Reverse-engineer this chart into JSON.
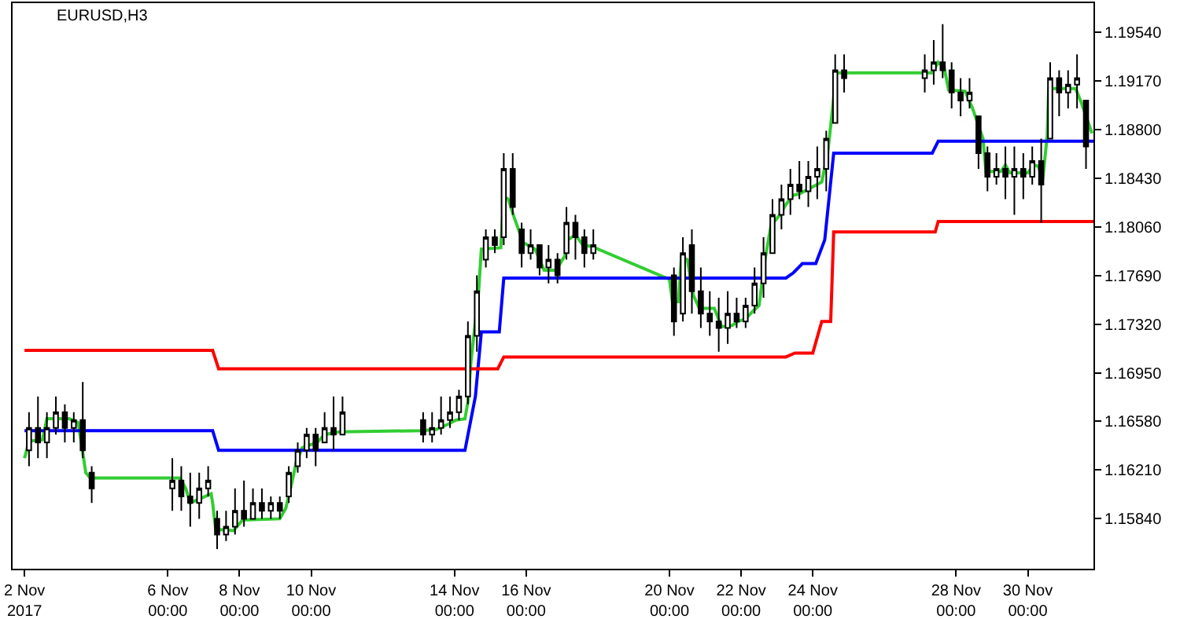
{
  "chart_data": {
    "type": "candlestick",
    "title": "EURUSD,H3",
    "color": "#000000",
    "x": [
      "2017-11-02T03:00",
      "2017-11-02T09:00",
      "2017-11-02T15:00",
      "2017-11-02T21:00",
      "2017-11-03T03:00",
      "2017-11-03T09:00",
      "2017-11-03T15:00",
      "2017-11-03T21:00",
      "2017-11-06T03:00",
      "2017-11-06T09:00",
      "2017-11-06T15:00",
      "2017-11-06T21:00",
      "2017-11-07T03:00",
      "2017-11-07T09:00",
      "2017-11-07T15:00",
      "2017-11-07T21:00",
      "2017-11-08T03:00",
      "2017-11-08T09:00",
      "2017-11-08T15:00",
      "2017-11-08T21:00",
      "2017-11-09T03:00",
      "2017-11-09T09:00",
      "2017-11-09T15:00",
      "2017-11-09T21:00",
      "2017-11-10T03:00",
      "2017-11-10T09:00",
      "2017-11-10T15:00",
      "2017-11-10T21:00",
      "2017-11-13T03:00",
      "2017-11-13T09:00",
      "2017-11-13T15:00",
      "2017-11-13T21:00",
      "2017-11-14T03:00",
      "2017-11-14T09:00",
      "2017-11-14T15:00",
      "2017-11-14T21:00",
      "2017-11-15T03:00",
      "2017-11-15T09:00",
      "2017-11-15T15:00",
      "2017-11-15T21:00",
      "2017-11-16T03:00",
      "2017-11-16T09:00",
      "2017-11-16T15:00",
      "2017-11-16T21:00",
      "2017-11-17T03:00",
      "2017-11-17T09:00",
      "2017-11-17T15:00",
      "2017-11-17T21:00",
      "2017-11-20T03:00",
      "2017-11-20T09:00",
      "2017-11-20T15:00",
      "2017-11-20T21:00",
      "2017-11-21T03:00",
      "2017-11-21T09:00",
      "2017-11-21T15:00",
      "2017-11-21T21:00",
      "2017-11-22T03:00",
      "2017-11-22T09:00",
      "2017-11-22T15:00",
      "2017-11-22T21:00",
      "2017-11-23T03:00",
      "2017-11-23T09:00",
      "2017-11-23T15:00",
      "2017-11-23T21:00",
      "2017-11-24T03:00",
      "2017-11-24T09:00",
      "2017-11-24T15:00",
      "2017-11-24T21:00",
      "2017-11-27T03:00",
      "2017-11-27T09:00",
      "2017-11-27T15:00",
      "2017-11-27T21:00",
      "2017-11-28T03:00",
      "2017-11-28T09:00",
      "2017-11-28T15:00",
      "2017-11-28T21:00",
      "2017-11-29T03:00",
      "2017-11-29T09:00",
      "2017-11-29T15:00",
      "2017-11-29T21:00",
      "2017-11-30T03:00",
      "2017-11-30T09:00",
      "2017-11-30T15:00",
      "2017-11-30T21:00",
      "2017-12-01T03:00",
      "2017-12-01T09:00",
      "2017-12-01T15:00"
    ],
    "ohlc": [
      [
        1.1636,
        1.1665,
        1.1624,
        1.1653
      ],
      [
        1.1653,
        1.1677,
        1.163,
        1.1642
      ],
      [
        1.1642,
        1.1665,
        1.163,
        1.1653
      ],
      [
        1.1653,
        1.1677,
        1.1648,
        1.1665
      ],
      [
        1.1665,
        1.1671,
        1.1642,
        1.1653
      ],
      [
        1.1653,
        1.1665,
        1.1642,
        1.1659
      ],
      [
        1.1659,
        1.1688,
        1.163,
        1.1636
      ],
      [
        1.1619,
        1.1624,
        1.1596,
        1.1607
      ],
      [
        1.1607,
        1.163,
        1.159,
        1.1613
      ],
      [
        1.1613,
        1.1624,
        1.159,
        1.1601
      ],
      [
        1.1601,
        1.1619,
        1.1578,
        1.1596
      ],
      [
        1.1596,
        1.1619,
        1.1584,
        1.1607
      ],
      [
        1.1607,
        1.1624,
        1.1601,
        1.1613
      ],
      [
        1.1584,
        1.159,
        1.1561,
        1.1572
      ],
      [
        1.1572,
        1.159,
        1.1567,
        1.1578
      ],
      [
        1.1578,
        1.1607,
        1.1572,
        1.159
      ],
      [
        1.159,
        1.1613,
        1.1578,
        1.1584
      ],
      [
        1.1584,
        1.1607,
        1.1584,
        1.1596
      ],
      [
        1.1596,
        1.1607,
        1.1584,
        1.159
      ],
      [
        1.159,
        1.1601,
        1.1584,
        1.1596
      ],
      [
        1.1596,
        1.1601,
        1.1584,
        1.159
      ],
      [
        1.1601,
        1.1624,
        1.1596,
        1.1619
      ],
      [
        1.1624,
        1.1642,
        1.1619,
        1.1636
      ],
      [
        1.1636,
        1.1653,
        1.163,
        1.1648
      ],
      [
        1.1648,
        1.1653,
        1.1624,
        1.1636
      ],
      [
        1.1642,
        1.1665,
        1.1642,
        1.1653
      ],
      [
        1.1653,
        1.1677,
        1.1636,
        1.1648
      ],
      [
        1.1648,
        1.1677,
        1.1648,
        1.1665
      ],
      [
        1.1659,
        1.1665,
        1.1642,
        1.1648
      ],
      [
        1.1648,
        1.1665,
        1.1642,
        1.1653
      ],
      [
        1.1653,
        1.1677,
        1.1648,
        1.1659
      ],
      [
        1.1659,
        1.1677,
        1.1653,
        1.1665
      ],
      [
        1.1665,
        1.1682,
        1.1659,
        1.1677
      ],
      [
        1.1677,
        1.1734,
        1.1671,
        1.1723
      ],
      [
        1.1723,
        1.1769,
        1.1711,
        1.1757
      ],
      [
        1.1781,
        1.1804,
        1.1775,
        1.1798
      ],
      [
        1.1798,
        1.1804,
        1.1786,
        1.1792
      ],
      [
        1.1798,
        1.1862,
        1.1792,
        1.185
      ],
      [
        1.185,
        1.1862,
        1.1815,
        1.1821
      ],
      [
        1.1804,
        1.1809,
        1.1775,
        1.1786
      ],
      [
        1.1786,
        1.1804,
        1.1781,
        1.1792
      ],
      [
        1.1792,
        1.1792,
        1.1769,
        1.1775
      ],
      [
        1.1775,
        1.1792,
        1.1763,
        1.1781
      ],
      [
        1.1781,
        1.1786,
        1.1763,
        1.1769
      ],
      [
        1.1786,
        1.1821,
        1.1781,
        1.1809
      ],
      [
        1.1809,
        1.1815,
        1.1781,
        1.1798
      ],
      [
        1.1798,
        1.1804,
        1.1775,
        1.1786
      ],
      [
        1.1786,
        1.1804,
        1.1781,
        1.1792
      ],
      [
        1.1769,
        1.1775,
        1.1723,
        1.1734
      ],
      [
        1.174,
        1.1798,
        1.1734,
        1.1786
      ],
      [
        1.1792,
        1.1804,
        1.174,
        1.1757
      ],
      [
        1.1757,
        1.1775,
        1.1729,
        1.174
      ],
      [
        1.174,
        1.1757,
        1.1723,
        1.1734
      ],
      [
        1.1734,
        1.1752,
        1.1711,
        1.1729
      ],
      [
        1.1729,
        1.1757,
        1.1717,
        1.174
      ],
      [
        1.174,
        1.1752,
        1.1729,
        1.1734
      ],
      [
        1.1734,
        1.1752,
        1.1729,
        1.1746
      ],
      [
        1.1746,
        1.1775,
        1.174,
        1.1763
      ],
      [
        1.1763,
        1.1798,
        1.1752,
        1.1786
      ],
      [
        1.1786,
        1.1827,
        1.1786,
        1.1815
      ],
      [
        1.1815,
        1.1838,
        1.1804,
        1.1827
      ],
      [
        1.1827,
        1.185,
        1.1815,
        1.1838
      ],
      [
        1.1838,
        1.1856,
        1.1827,
        1.1833
      ],
      [
        1.1833,
        1.1856,
        1.1821,
        1.1844
      ],
      [
        1.1844,
        1.1867,
        1.1827,
        1.185
      ],
      [
        1.185,
        1.1879,
        1.1833,
        1.1873
      ],
      [
        1.1885,
        1.1937,
        1.1885,
        1.1925
      ],
      [
        1.1925,
        1.1937,
        1.1908,
        1.1919
      ],
      [
        1.1919,
        1.1937,
        1.1908,
        1.1925
      ],
      [
        1.1925,
        1.1948,
        1.1914,
        1.1931
      ],
      [
        1.1931,
        1.196,
        1.1919,
        1.1925
      ],
      [
        1.1925,
        1.1931,
        1.1896,
        1.1908
      ],
      [
        1.1908,
        1.1919,
        1.189,
        1.1902
      ],
      [
        1.1902,
        1.1919,
        1.1896,
        1.1908
      ],
      [
        1.189,
        1.189,
        1.185,
        1.1862
      ],
      [
        1.1862,
        1.1867,
        1.1833,
        1.1844
      ],
      [
        1.1844,
        1.1862,
        1.1838,
        1.185
      ],
      [
        1.185,
        1.1867,
        1.1827,
        1.1844
      ],
      [
        1.1844,
        1.1867,
        1.1815,
        1.185
      ],
      [
        1.185,
        1.1862,
        1.1827,
        1.1844
      ],
      [
        1.1844,
        1.1867,
        1.1838,
        1.1856
      ],
      [
        1.1856,
        1.1873,
        1.1809,
        1.1838
      ],
      [
        1.1873,
        1.1931,
        1.1873,
        1.1919
      ],
      [
        1.1919,
        1.1925,
        1.189,
        1.1908
      ],
      [
        1.1908,
        1.1925,
        1.1896,
        1.1914
      ],
      [
        1.1914,
        1.1937,
        1.1896,
        1.1919
      ],
      [
        1.1902,
        1.1902,
        1.185,
        1.1867
      ]
    ],
    "series": [
      {
        "type": "line",
        "color": "#32cd32",
        "x": [
          "2017-11-02T00:00",
          "2017-11-02T03:00",
          "2017-11-02T12:00",
          "2017-11-02T15:00",
          "2017-11-03T06:00",
          "2017-11-03T12:00",
          "2017-11-03T14:00",
          "2017-11-03T17:00",
          "2017-11-03T20:00",
          "2017-11-06T08:00",
          "2017-11-06T12:00",
          "2017-11-06T15:00",
          "2017-11-06T23:00",
          "2017-11-07T05:00",
          "2017-11-07T06:00",
          "2017-11-07T08:00",
          "2017-11-07T20:00",
          "2017-11-08T02:00",
          "2017-11-09T03:00",
          "2017-11-09T07:00",
          "2017-11-09T11:00",
          "2017-11-09T14:00",
          "2017-11-09T18:00",
          "2017-11-10T04:00",
          "2017-11-10T09:00",
          "2017-11-10T19:00",
          "2017-11-13T02:00",
          "2017-11-13T12:00",
          "2017-11-13T20:00",
          "2017-11-14T01:00",
          "2017-11-14T07:00",
          "2017-11-14T09:00",
          "2017-11-14T11:00",
          "2017-11-14T14:00",
          "2017-11-14T16:00",
          "2017-11-14T18:00",
          "2017-11-15T07:00",
          "2017-11-15T09:00",
          "2017-11-15T12:00",
          "2017-11-15T16:00",
          "2017-11-15T22:00",
          "2017-11-16T06:00",
          "2017-11-16T12:00",
          "2017-11-16T20:00",
          "2017-11-17T02:00",
          "2017-11-17T04:00",
          "2017-11-17T09:00",
          "2017-11-17T14:00",
          "2017-11-17T20:00",
          "2017-11-20T00:00",
          "2017-11-20T02:00",
          "2017-11-20T06:00",
          "2017-11-20T08:00",
          "2017-11-20T12:00",
          "2017-11-20T16:00",
          "2017-11-20T20:00",
          "2017-11-21T06:00",
          "2017-11-21T11:00",
          "2017-11-21T18:00",
          "2017-11-21T22:00",
          "2017-11-22T03:00",
          "2017-11-22T08:00",
          "2017-11-22T12:00",
          "2017-11-22T16:00",
          "2017-11-22T20:00",
          "2017-11-23T02:00",
          "2017-11-23T06:00",
          "2017-11-23T11:00",
          "2017-11-23T15:00",
          "2017-11-24T06:00",
          "2017-11-24T10:00",
          "2017-11-24T14:00",
          "2017-11-24T15:00",
          "2017-11-27T08:00",
          "2017-11-27T12:00",
          "2017-11-27T16:00",
          "2017-11-27T19:00",
          "2017-11-28T06:00",
          "2017-11-28T11:00",
          "2017-11-28T18:00",
          "2017-11-28T20:00",
          "2017-11-29T06:00",
          "2017-11-29T09:00",
          "2017-11-29T12:00",
          "2017-11-30T00:00",
          "2017-11-30T04:00",
          "2017-11-30T07:00",
          "2017-11-30T10:00",
          "2017-11-30T13:00",
          "2017-11-30T14:00",
          "2017-12-01T08:00",
          "2017-12-01T12:00",
          "2017-12-01T19:00"
        ],
        "values": [
          1.163,
          1.1643,
          1.1644,
          1.166,
          1.166,
          1.1657,
          1.1642,
          1.1619,
          1.1615,
          1.1615,
          1.1607,
          1.1596,
          1.16,
          1.1603,
          1.1596,
          1.1576,
          1.1575,
          1.1583,
          1.1584,
          1.1592,
          1.1611,
          1.1627,
          1.1638,
          1.1642,
          1.1648,
          1.165,
          1.1651,
          1.1652,
          1.1656,
          1.1659,
          1.166,
          1.1673,
          1.1703,
          1.1734,
          1.1754,
          1.1789,
          1.179,
          1.1829,
          1.1827,
          1.1813,
          1.1794,
          1.1789,
          1.1773,
          1.1773,
          1.1784,
          1.1796,
          1.18,
          1.1792,
          1.1791,
          1.1766,
          1.1749,
          1.1749,
          1.1783,
          1.1781,
          1.1754,
          1.1744,
          1.1744,
          1.173,
          1.1731,
          1.1734,
          1.1736,
          1.1742,
          1.1746,
          1.1781,
          1.1807,
          1.1815,
          1.1823,
          1.183,
          1.1831,
          1.184,
          1.1862,
          1.1904,
          1.1923,
          1.1923,
          1.1931,
          1.1927,
          1.191,
          1.1909,
          1.1896,
          1.1873,
          1.1848,
          1.1848,
          1.1853,
          1.1847,
          1.1847,
          1.1853,
          1.1852,
          1.1842,
          1.1875,
          1.1911,
          1.1911,
          1.19,
          1.1877
        ]
      },
      {
        "type": "line",
        "color": "#0000ff",
        "x": [
          "2017-11-02T00:00",
          "2017-11-07T06:00",
          "2017-11-07T10:00",
          "2017-11-14T07:00",
          "2017-11-14T14:00",
          "2017-11-14T18:00",
          "2017-11-15T06:00",
          "2017-11-15T09:00",
          "2017-11-23T06:00",
          "2017-11-23T11:00",
          "2017-11-23T17:00",
          "2017-11-24T02:00",
          "2017-11-24T08:00",
          "2017-11-24T14:00",
          "2017-11-27T08:00",
          "2017-11-27T12:00",
          "2017-12-01T20:00"
        ],
        "values": [
          1.1651,
          1.1651,
          1.1636,
          1.1636,
          1.1677,
          1.1726,
          1.1726,
          1.1767,
          1.1767,
          1.1771,
          1.1778,
          1.1778,
          1.1796,
          1.1862,
          1.1862,
          1.1871,
          1.1871
        ]
      },
      {
        "type": "line",
        "color": "#ff0000",
        "x": [
          "2017-11-02T00:00",
          "2017-11-07T06:00",
          "2017-11-07T10:00",
          "2017-11-15T05:00",
          "2017-11-15T09:00",
          "2017-11-23T06:00",
          "2017-11-23T12:00",
          "2017-11-24T00:00",
          "2017-11-24T06:00",
          "2017-11-24T12:00",
          "2017-11-24T14:00",
          "2017-11-27T10:00",
          "2017-11-27T12:00",
          "2017-12-01T20:00"
        ],
        "values": [
          1.1712,
          1.1712,
          1.1698,
          1.1698,
          1.1707,
          1.1707,
          1.171,
          1.171,
          1.1734,
          1.1734,
          1.1802,
          1.1802,
          1.181,
          1.181
        ]
      }
    ],
    "xlim": [
      "2017-11-01T16:00",
      "2017-12-01T20:00"
    ],
    "xticks": [
      {
        "value": "2017-11-02",
        "label": "2 Nov 2017"
      },
      {
        "value": "2017-11-06",
        "label": "6 Nov 00:00"
      },
      {
        "value": "2017-11-08",
        "label": "8 Nov 00:00"
      },
      {
        "value": "2017-11-10",
        "label": "10 Nov 00:00"
      },
      {
        "value": "2017-11-14",
        "label": "14 Nov 00:00"
      },
      {
        "value": "2017-11-16",
        "label": "16 Nov 00:00"
      },
      {
        "value": "2017-11-20",
        "label": "20 Nov 00:00"
      },
      {
        "value": "2017-11-22",
        "label": "22 Nov 00:00"
      },
      {
        "value": "2017-11-24",
        "label": "24 Nov 00:00"
      },
      {
        "value": "2017-11-28",
        "label": "28 Nov 00:00"
      },
      {
        "value": "2017-11-30",
        "label": "30 Nov 00:00"
      }
    ],
    "ylim": [
      1.1546,
      1.1976
    ],
    "yticks": [
      {
        "value": 1.1584,
        "label": "1.15840"
      },
      {
        "value": 1.1621,
        "label": "1.16210"
      },
      {
        "value": 1.1658,
        "label": "1.16580"
      },
      {
        "value": 1.1695,
        "label": "1.16950"
      },
      {
        "value": 1.1732,
        "label": "1.17320"
      },
      {
        "value": 1.1769,
        "label": "1.17690"
      },
      {
        "value": 1.1806,
        "label": "1.18060"
      },
      {
        "value": 1.1843,
        "label": "1.18430"
      },
      {
        "value": 1.188,
        "label": "1.18800"
      },
      {
        "value": 1.1917,
        "label": "1.19170"
      },
      {
        "value": 1.1954,
        "label": "1.19540"
      }
    ],
    "grid": false,
    "marker": "none",
    "line_style": "solid"
  }
}
